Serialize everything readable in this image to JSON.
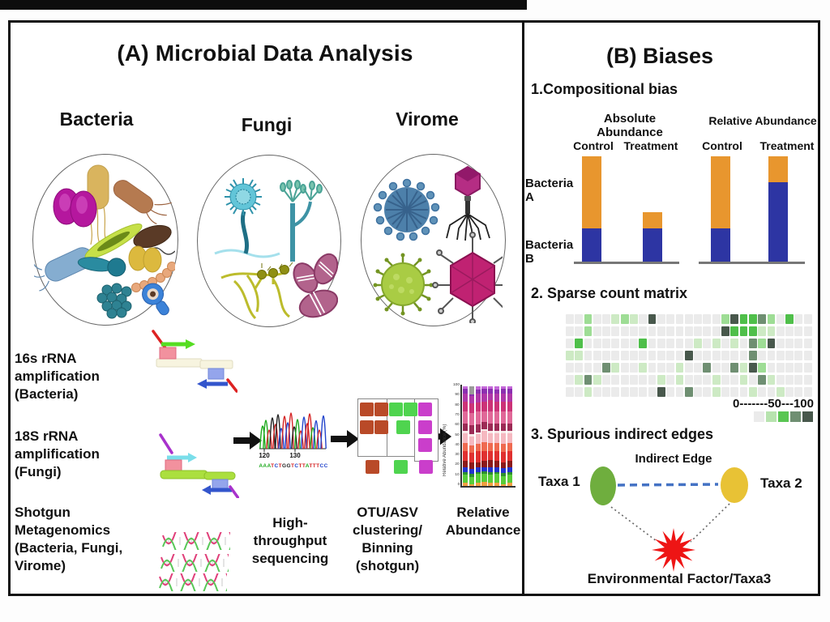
{
  "panel_a": {
    "title": "(A) Microbial Data Analysis",
    "columns": [
      "Bacteria",
      "Fungi",
      "Virome"
    ],
    "methods": {
      "m16s_l1": "16s rRNA amplification",
      "m16s_l2": "(Bacteria)",
      "m18s_l1": "18S rRNA amplification",
      "m18s_l2": "(Fungi)",
      "shotgun_l1": "Shotgun Metagenomics",
      "shotgun_l2": "(Bacteria, Fungi,",
      "shotgun_l3": "Virome)"
    },
    "chromatogram": {
      "tick1": "120",
      "tick2": "130",
      "sequence": "AAATCTGGTCTTATTTCC",
      "base_colors": {
        "A": "#1faa1f",
        "T": "#d42222",
        "G": "#222222",
        "C": "#2244cc"
      }
    },
    "steps": {
      "seq_l1": "High-throughput",
      "seq_l2": "sequencing",
      "otu_l1": "OTU/ASV",
      "otu_l2": "clustering/",
      "otu_l3": "Binning",
      "otu_l4": "(shotgun)",
      "ra_l1": "Relative",
      "ra_l2": "Abundance"
    },
    "otu_bins": {
      "bin1": "#b94a28",
      "bin2": "#4fd44f",
      "bin3": "#ca3ecb"
    }
  },
  "panel_b": {
    "title": "(B) Biases",
    "compositional": {
      "heading": "1.Compositional bias",
      "group1": "Absolute Abundance",
      "group2": "Relative Abundance",
      "cond1": "Control",
      "cond2": "Treatment",
      "cond3": "Control",
      "cond4": "Treatment",
      "row1": "Bacteria A",
      "row2": "Bacteria B"
    },
    "sparse": {
      "heading": "2. Sparse count matrix",
      "legend": "0-------50---100"
    },
    "edges": {
      "heading": "3. Spurious indirect edges",
      "edge_label": "Indirect Edge",
      "taxa1": "Taxa 1",
      "taxa2": "Taxa 2",
      "env": "Environmental Factor/Taxa3",
      "taxa1_color": "#6fae3e",
      "taxa2_color": "#e8c235",
      "edge_color": "#4472c4",
      "burst_color": "#ee1515"
    }
  },
  "chart_data": [
    {
      "type": "bar",
      "stacked": true,
      "title": "Compositional bias",
      "groups": [
        "Absolute Abundance",
        "Relative Abundance"
      ],
      "series_labels": [
        "Bacteria A",
        "Bacteria B"
      ],
      "unit": "px-height (proportional abundance)",
      "bars": [
        {
          "group": "Absolute Abundance",
          "condition": "Control",
          "bacteria_a": 89,
          "bacteria_b": 41
        },
        {
          "group": "Absolute Abundance",
          "condition": "Treatment",
          "bacteria_a": 20,
          "bacteria_b": 41
        },
        {
          "group": "Relative Abundance",
          "condition": "Control",
          "bacteria_a": 89,
          "bacteria_b": 41
        },
        {
          "group": "Relative Abundance",
          "condition": "Treatment",
          "bacteria_a": 32,
          "bacteria_b": 98
        }
      ],
      "colors": {
        "bacteria_a": "#E8962E",
        "bacteria_b": "#2D35A3"
      }
    },
    {
      "type": "heatmap",
      "title": "Sparse count matrix",
      "legend": "0-------50---100",
      "legend_range": [
        0,
        50,
        100
      ],
      "palette": {
        ".": "#ebebeb",
        "l": "#cdeac4",
        "L": "#9edd95",
        "g": "#4fbf4a",
        "d": "#6f8f72",
        "k": "#48584c"
      },
      "legend_swatches": [
        "#ebebeb",
        "#b7e3ae",
        "#5ac653",
        "#6f8f72",
        "#48584c"
      ],
      "rows": [
        "..L..lLl.k.......LkggdL.g..",
        "..L..............kgggll....",
        ".g......g.....l.l.l.dLk....",
        "ll...........k......d......",
        "....dl..l...l..d..dlkL.....",
        ".ldl......l.l...l..l.dl....",
        "..l.......k..d..l...l..l..."
      ]
    },
    {
      "type": "stacked-bar",
      "title": "Relative Abundance",
      "ylabel": "Relative Abundance (%)",
      "yticks": [
        0,
        10,
        20,
        30,
        40,
        50,
        60,
        70,
        80,
        90,
        100
      ],
      "ylim": [
        0,
        100
      ],
      "palette": [
        "#f0a040",
        "#58cc38",
        "#2e8f2e",
        "#2233cc",
        "#8b1a1a",
        "#e03030",
        "#ef6a50",
        "#f5b8c0",
        "#f8e8e8",
        "#9c2a55",
        "#e06898",
        "#cc3377",
        "#b038a8",
        "#8c30b0",
        "#c468d8"
      ],
      "overrides": {
        "1": {
          "14": "#9a9a9a"
        }
      },
      "bars": [
        [
          3,
          8,
          3,
          5,
          6,
          10,
          8,
          10,
          2,
          8,
          12,
          10,
          8,
          5,
          2
        ],
        [
          2,
          7,
          3,
          5,
          7,
          9,
          8,
          9,
          2,
          9,
          12,
          10,
          7,
          2,
          8
        ],
        [
          3,
          9,
          2,
          5,
          5,
          11,
          7,
          10,
          2,
          8,
          13,
          9,
          9,
          4,
          3
        ],
        [
          4,
          8,
          3,
          4,
          6,
          10,
          9,
          11,
          2,
          7,
          11,
          10,
          8,
          5,
          2
        ],
        [
          3,
          8,
          3,
          5,
          7,
          9,
          8,
          10,
          2,
          8,
          12,
          11,
          7,
          5,
          2
        ],
        [
          3,
          9,
          2,
          5,
          6,
          10,
          8,
          10,
          2,
          8,
          12,
          10,
          8,
          4,
          3
        ],
        [
          2,
          8,
          3,
          5,
          6,
          10,
          8,
          11,
          2,
          8,
          12,
          10,
          8,
          5,
          2
        ],
        [
          3,
          8,
          3,
          5,
          6,
          10,
          8,
          10,
          2,
          8,
          12,
          10,
          8,
          5,
          2
        ]
      ]
    }
  ]
}
